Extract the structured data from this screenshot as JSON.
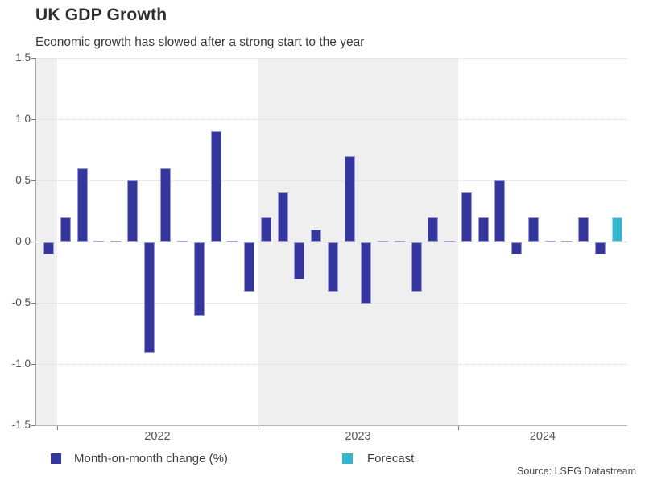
{
  "header": {
    "title": "UK GDP Growth",
    "subtitle": "Economic growth has slowed after a strong start to the year"
  },
  "footer": {
    "source": "Source: LSEG Datastream"
  },
  "legend": {
    "items": [
      {
        "label": "Month-on-month change (%)",
        "color": "#35359e"
      },
      {
        "label": "Forecast",
        "color": "#35b6cf"
      }
    ]
  },
  "colors": {
    "bar": "#35359e",
    "bar_border": "#9b9bd6",
    "forecast": "#35b6cf",
    "forecast_border": "#a3dcec",
    "zero_value_dash": "#a6a6cc",
    "year_band": "#efefef",
    "gridline": "#d9d9d9",
    "axis_line": "#a6a6a6",
    "zero_line": "#b8b8b8",
    "tick": "#7d7d7d"
  },
  "chart_data": {
    "type": "bar",
    "title": "UK GDP Growth",
    "subtitle": "Economic growth has slowed after a strong start to the year",
    "xlabel": "",
    "ylabel": "",
    "ylim": [
      -1.5,
      1.5
    ],
    "ytick_labels": [
      "1.5",
      "1.0",
      "0.5",
      "0.0",
      "-0.5",
      "-1.0",
      "-1.5"
    ],
    "grid": "horizontal dotted",
    "legend_position": "bottom",
    "series_name": "Month-on-month change (%)",
    "units": "percent, month-on-month change",
    "shaded_periods": [
      "Nov-Dec 2021",
      "2023"
    ],
    "x_year_labels": [
      "2022",
      "2023",
      "2024"
    ],
    "points": [
      {
        "month": "2021-12",
        "value": -0.1
      },
      {
        "month": "2022-01",
        "value": 0.2
      },
      {
        "month": "2022-02",
        "value": 0.6
      },
      {
        "month": "2022-03",
        "value": 0.0
      },
      {
        "month": "2022-04",
        "value": 0.0
      },
      {
        "month": "2022-05",
        "value": 0.5
      },
      {
        "month": "2022-06",
        "value": -0.9
      },
      {
        "month": "2022-07",
        "value": 0.6
      },
      {
        "month": "2022-08",
        "value": 0.0
      },
      {
        "month": "2022-09",
        "value": -0.6
      },
      {
        "month": "2022-10",
        "value": 0.9
      },
      {
        "month": "2022-11",
        "value": 0.0
      },
      {
        "month": "2022-12",
        "value": -0.4
      },
      {
        "month": "2023-01",
        "value": 0.2
      },
      {
        "month": "2023-02",
        "value": 0.4
      },
      {
        "month": "2023-03",
        "value": -0.3
      },
      {
        "month": "2023-04",
        "value": 0.1
      },
      {
        "month": "2023-05",
        "value": -0.4
      },
      {
        "month": "2023-06",
        "value": 0.7
      },
      {
        "month": "2023-07",
        "value": -0.5
      },
      {
        "month": "2023-08",
        "value": 0.0
      },
      {
        "month": "2023-09",
        "value": 0.0
      },
      {
        "month": "2023-10",
        "value": -0.4
      },
      {
        "month": "2023-11",
        "value": 0.2
      },
      {
        "month": "2023-12",
        "value": 0.0
      },
      {
        "month": "2024-01",
        "value": 0.4
      },
      {
        "month": "2024-02",
        "value": 0.2
      },
      {
        "month": "2024-03",
        "value": 0.5
      },
      {
        "month": "2024-04",
        "value": -0.1
      },
      {
        "month": "2024-05",
        "value": 0.2
      },
      {
        "month": "2024-06",
        "value": 0.0
      },
      {
        "month": "2024-07",
        "value": 0.0
      },
      {
        "month": "2024-08",
        "value": 0.2
      },
      {
        "month": "2024-09",
        "value": -0.1
      },
      {
        "month": "2024-10",
        "value": 0.2,
        "forecast": true
      }
    ]
  }
}
